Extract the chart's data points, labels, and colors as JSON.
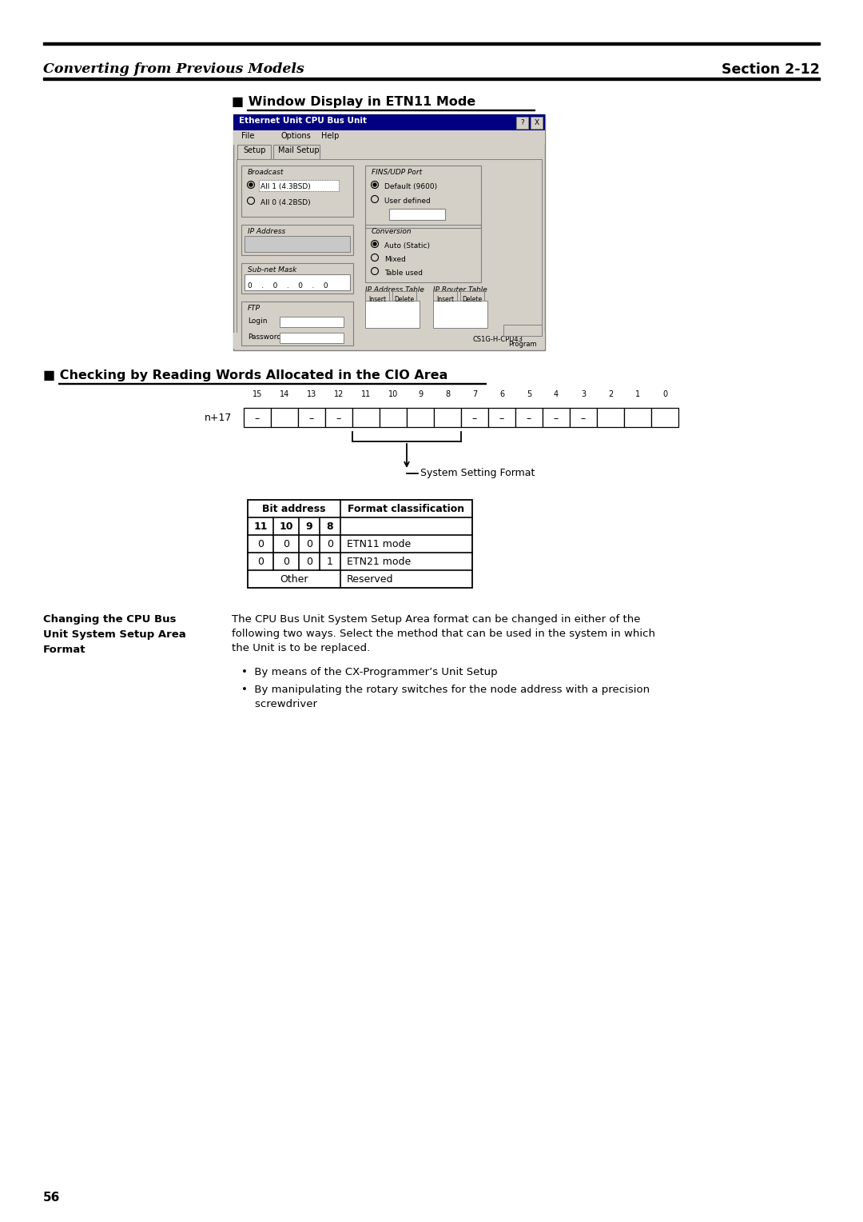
{
  "page_bg": "#ffffff",
  "header_left_text": "Converting from Previous Models",
  "header_right_text": "Section 2-12",
  "section1_title": "■ Window Display in ETN11 Mode",
  "section2_title": "■ Checking by Reading Words Allocated in the CIO Area",
  "dlg_title": "Ethernet Unit CPU Bus Unit",
  "dlg_menu": [
    "File",
    "Options",
    "Help"
  ],
  "dlg_tabs": [
    "Setup",
    "Mail Setup"
  ],
  "broadcast_items": [
    "All 1 (4.3BSD)",
    "All 0 (4.2BSD)"
  ],
  "fins_items": [
    "Default (9600)",
    "User defined"
  ],
  "conversion_items": [
    "Auto (Static)",
    "Mixed",
    "Table used"
  ],
  "subnet_values": [
    "0",
    "0",
    "0",
    "0"
  ],
  "ftp_labels": [
    "Login",
    "Password"
  ],
  "status_text": "CS1G-H-CPU43",
  "program_text": "Program",
  "bit_numbers": [
    "15",
    "14",
    "13",
    "12",
    "11",
    "10",
    "9",
    "8",
    "7",
    "6",
    "5",
    "4",
    "3",
    "2",
    "1",
    "0"
  ],
  "row_label": "n+17",
  "dash_positions": [
    0,
    2,
    3,
    8,
    9,
    10,
    11,
    12
  ],
  "brace_label": "System Setting Format",
  "tbl_hdr1": [
    "Bit address",
    "Format classification"
  ],
  "tbl_hdr2": [
    "11",
    "10",
    "9",
    "8"
  ],
  "tbl_rows": [
    [
      "0",
      "0",
      "0",
      "0",
      "ETN11 mode"
    ],
    [
      "0",
      "0",
      "0",
      "1",
      "ETN21 mode"
    ],
    [
      "Other",
      "",
      "",
      "",
      "Reserved"
    ]
  ],
  "left_label": "Changing the CPU Bus\nUnit System Setup Area\nFormat",
  "body_text_lines": [
    "The CPU Bus Unit System Setup Area format can be changed in either of the",
    "following two ways. Select the method that can be used in the system in which",
    "the Unit is to be replaced."
  ],
  "bullet1": "By means of the CX-Programmer’s Unit Setup",
  "bullet2_lines": [
    "By manipulating the rotary switches for the node address with a precision",
    "screwdriver"
  ],
  "page_number": "56"
}
